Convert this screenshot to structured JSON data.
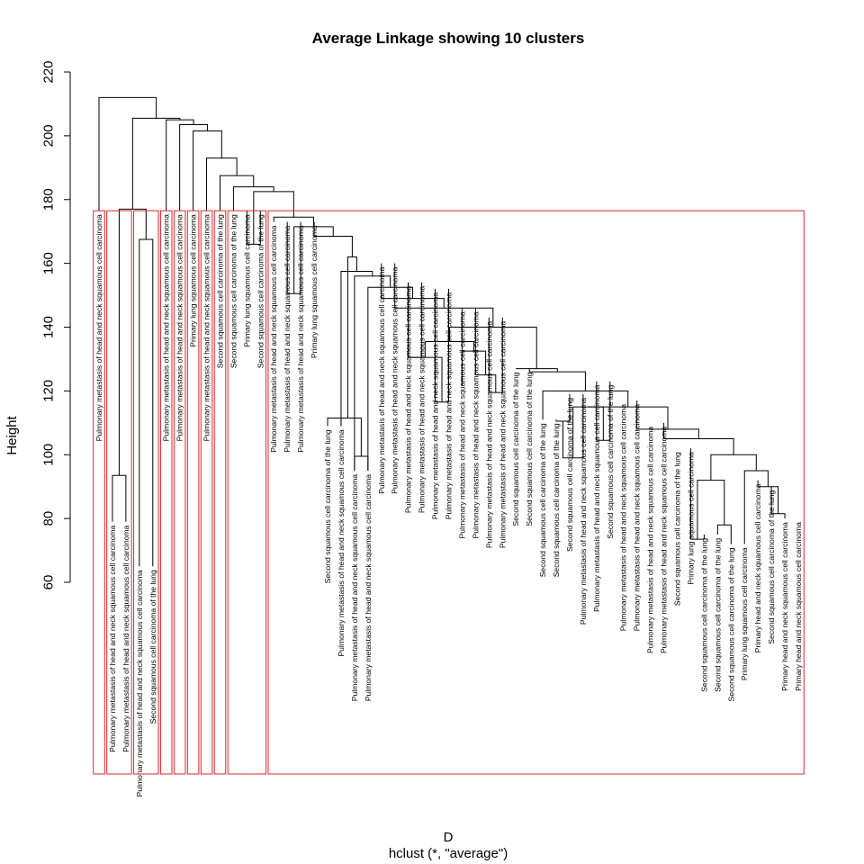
{
  "chart_data": {
    "type": "dendrogram",
    "title": "Average Linkage showing 10 clusters",
    "xlabel": "D",
    "sub": "hclust (*, \"average\")",
    "ylabel": "Height",
    "ylim": [
      60,
      220
    ],
    "yticks": [
      60,
      80,
      100,
      120,
      140,
      160,
      180,
      200,
      220
    ],
    "cut_clusters": 10,
    "cut_height": 176.5,
    "cluster_box_color": "#e0262b",
    "leaves": [
      "Pulmonary metastasis of head and neck squamous cell carcinoma",
      "Pulmonary metastasis of head and neck squamous cell carcinoma",
      "Pulmonary metastasis of head and neck squamous cell carcinoma",
      "Pulmonary metastasis of head and neck squamous cell carcinoma",
      "Second squamous cell carcinoma of the lung",
      "Pulmonary metastasis of head and neck squamous cell carcinoma",
      "Pulmonary metastasis of head and neck squamous cell carcinoma",
      "Primary lung squamous cell carcinoma",
      "Pulmonary metastasis of head and neck squamous cell carcinoma",
      "Second squamous cell carcinoma of the lung",
      "Second squamous cell carcinoma of the lung",
      "Primary lung squamous cell carcinoma",
      "Second squamous cell carcinoma of the lung",
      "Pulmonary metastasis of head and neck squamous cell carcinoma",
      "Pulmonary metastasis of head and neck squamous cell carcinoma",
      "Pulmonary metastasis of head and neck squamous cell carcinoma",
      "Primary lung squamous cell carcinoma",
      "Second squamous cell carcinoma of the lung",
      "Pulmonary metastasis of head and neck squamous cell carcinoma",
      "Pulmonary metastasis of head and neck squamous cell carcinoma",
      "Pulmonary metastasis of head and neck squamous cell carcinoma",
      "Pulmonary metastasis of head and neck squamous cell carcinoma",
      "Pulmonary metastasis of head and neck squamous cell carcinoma",
      "Pulmonary metastasis of head and neck squamous cell carcinoma",
      "Pulmonary metastasis of head and neck squamous cell carcinoma",
      "Pulmonary metastasis of head and neck squamous cell carcinoma",
      "Pulmonary metastasis of head and neck squamous cell carcinoma",
      "Pulmonary metastasis of head and neck squamous cell carcinoma",
      "Pulmonary metastasis of head and neck squamous cell carcinoma",
      "Pulmonary metastasis of head and neck squamous cell carcinoma",
      "Pulmonary metastasis of head and neck squamous cell carcinoma",
      "Second squamous cell carcinoma of the lung",
      "Second squamous cell carcinoma of the lung",
      "Second squamous cell carcinoma of the lung",
      "Second squamous cell carcinoma of the lung",
      "Second squamous cell carcinoma of the lung",
      "Pulmonary metastasis of head and neck squamous cell carcinoma",
      "Pulmonary metastasis of head and neck squamous cell carcinoma",
      "Second squamous cell carcinoma of the lung",
      "Pulmonary metastasis of head and neck squamous cell carcinoma",
      "Pulmonary metastasis of head and neck squamous cell carcinoma",
      "Pulmonary metastasis of head and neck squamous cell carcinoma",
      "Pulmonary metastasis of head and neck squamous cell carcinoma",
      "Second squamous cell carcinoma of the lung",
      "Primary lung squamous cell carcinoma",
      "Second squamous cell carcinoma of the lung",
      "Second squamous cell carcinoma of the lung",
      "Second squamous cell carcinoma of the lung",
      "Primary lung squamous cell carcinoma",
      "Primary head and neck squamous cell carcinoma",
      "Second squamous cell carcinoma of the lung",
      "Primary head and neck squamous cell carcinoma",
      "Primary head and neck squamous cell carcinoma"
    ],
    "leaf_top_heights": [
      176.5,
      79,
      79,
      65,
      65,
      176.5,
      176.5,
      176.5,
      176.5,
      176.5,
      176.5,
      176.5,
      176.5,
      173,
      173,
      173,
      173,
      109,
      109,
      95,
      95,
      160,
      160,
      154,
      154,
      152,
      152,
      146,
      146,
      143,
      143,
      127,
      127,
      111,
      111,
      119,
      119,
      123,
      123,
      117,
      117,
      110,
      110,
      102,
      102,
      75,
      75,
      72,
      72,
      92,
      90,
      80,
      80
    ],
    "merges": [
      [
        1,
        2,
        93.5
      ],
      [
        3,
        4,
        167.5
      ],
      [
        17,
        18,
        111.5
      ],
      [
        19,
        20,
        99.5
      ],
      [
        -3,
        -4,
        169.5
      ],
      [
        14,
        15,
        150.5
      ],
      [
        22,
        23,
        157.5
      ],
      [
        24,
        25,
        156
      ],
      [
        26,
        27,
        152.5
      ],
      [
        28,
        29,
        149
      ],
      [
        30,
        31,
        146
      ],
      [
        32,
        33,
        130.5
      ],
      [
        34,
        35,
        117
      ],
      [
        36,
        37,
        121.5
      ],
      [
        38,
        39,
        120
      ],
      [
        40,
        41,
        110.5
      ],
      [
        42,
        43,
        99
      ],
      [
        44,
        45,
        104.5
      ],
      [
        46,
        47,
        73.5
      ],
      [
        48,
        49,
        78
      ],
      [
        51,
        52,
        81.5
      ]
    ],
    "top_structure": "single leaf 0 joins rest at ~212; cluster boxes cut at ~176.5"
  }
}
